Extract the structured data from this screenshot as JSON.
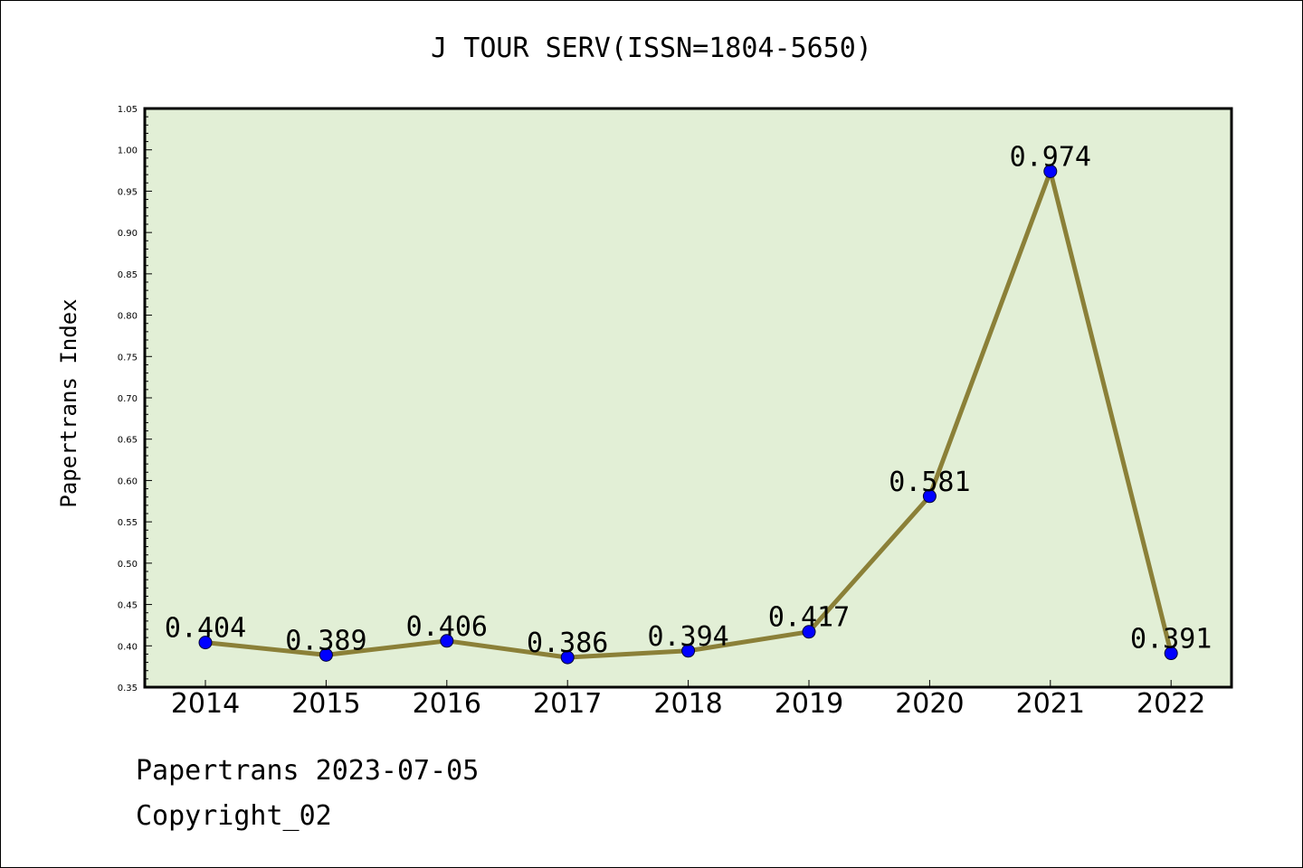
{
  "chart_data": {
    "type": "line",
    "title": "J TOUR SERV(ISSN=1804-5650)",
    "xlabel": "",
    "ylabel": "Papertrans Index",
    "categories": [
      "2014",
      "2015",
      "2016",
      "2017",
      "2018",
      "2019",
      "2020",
      "2021",
      "2022"
    ],
    "values": [
      0.404,
      0.389,
      0.406,
      0.386,
      0.394,
      0.417,
      0.581,
      0.974,
      0.391
    ],
    "data_labels": [
      "0.404",
      "0.389",
      "0.406",
      "0.386",
      "0.394",
      "0.417",
      "0.581",
      "0.974",
      "0.391"
    ],
    "ylim": [
      0.35,
      1.05
    ],
    "yticks": [
      "0.35",
      "0.40",
      "0.45",
      "0.50",
      "0.55",
      "0.60",
      "0.65",
      "0.70",
      "0.75",
      "0.80",
      "0.85",
      "0.90",
      "0.95",
      "1.00",
      "1.05"
    ],
    "grid": false,
    "colors": {
      "line": "#8b8038",
      "marker": "#0000ff",
      "plot_bg": "#e2efd6"
    }
  },
  "footer": {
    "line1": "Papertrans 2023-07-05",
    "line2": "Copyright_02"
  }
}
